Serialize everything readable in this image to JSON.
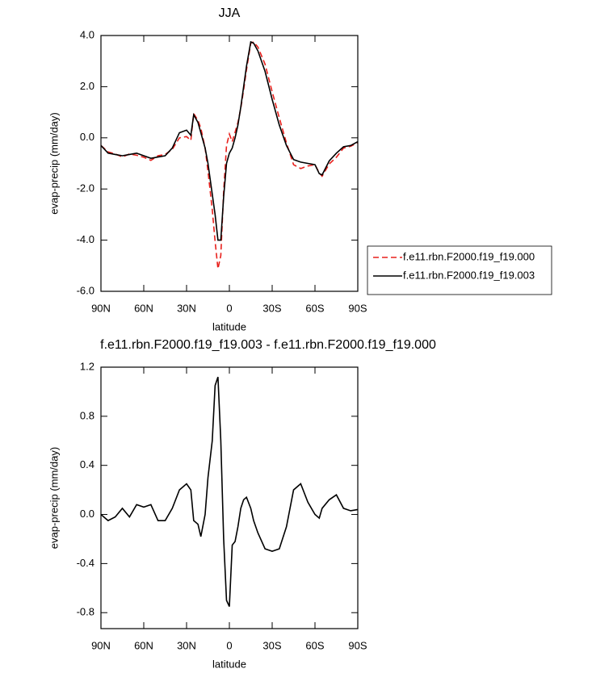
{
  "chart_data": [
    {
      "type": "line",
      "title": "JJA",
      "xlabel": "latitude",
      "ylabel": "evap-precip (mm/day)",
      "x": [
        90,
        85,
        80,
        75,
        70,
        65,
        60,
        55,
        50,
        45,
        40,
        35,
        30,
        27,
        25,
        22,
        20,
        17,
        15,
        12,
        10,
        8,
        6,
        4,
        2,
        0,
        -2,
        -4,
        -6,
        -8,
        -10,
        -12,
        -15,
        -17,
        -20,
        -25,
        -30,
        -35,
        -40,
        -45,
        -50,
        -55,
        -60,
        -63,
        -65,
        -70,
        -75,
        -80,
        -85,
        -90
      ],
      "series": [
        {
          "name": "f.e11.rbn.F2000.f19_f19.000",
          "color": "#e8201c",
          "line_style": "dashed",
          "values": [
            -0.3,
            -0.55,
            -0.63,
            -0.75,
            -0.63,
            -0.68,
            -0.76,
            -0.88,
            -0.7,
            -0.65,
            -0.45,
            0.0,
            0.05,
            -0.1,
            0.95,
            0.68,
            0.38,
            -0.4,
            -1.3,
            -2.8,
            -4.05,
            -5.12,
            -4.6,
            -2.1,
            -0.3,
            0.15,
            -0.15,
            0.22,
            0.6,
            1.15,
            1.88,
            2.66,
            3.7,
            3.75,
            3.55,
            2.88,
            1.8,
            0.78,
            -0.2,
            -1.05,
            -1.2,
            -1.1,
            -1.05,
            -1.37,
            -1.5,
            -1.02,
            -0.76,
            -0.4,
            -0.33,
            -0.19
          ]
        },
        {
          "name": "f.e11.rbn.F2000.f19_f19.003",
          "color": "#000000",
          "line_style": "solid",
          "values": [
            -0.3,
            -0.6,
            -0.65,
            -0.7,
            -0.65,
            -0.6,
            -0.7,
            -0.8,
            -0.75,
            -0.7,
            -0.4,
            0.2,
            0.3,
            0.1,
            0.9,
            0.6,
            0.2,
            -0.4,
            -1.0,
            -2.2,
            -3.0,
            -4.0,
            -4.0,
            -2.3,
            -1.0,
            -0.6,
            -0.4,
            0.0,
            0.5,
            1.2,
            2.0,
            2.8,
            3.75,
            3.7,
            3.4,
            2.6,
            1.5,
            0.5,
            -0.3,
            -0.85,
            -0.95,
            -1.0,
            -1.05,
            -1.4,
            -1.45,
            -0.9,
            -0.6,
            -0.35,
            -0.3,
            -0.15
          ]
        }
      ],
      "xlim": [
        90,
        -90
      ],
      "xticks": [
        {
          "value": 90,
          "label": "90N"
        },
        {
          "value": 60,
          "label": "60N"
        },
        {
          "value": 30,
          "label": "30N"
        },
        0,
        {
          "value": -30,
          "label": "30S"
        },
        {
          "value": -60,
          "label": "60S"
        },
        {
          "value": -90,
          "label": "90S"
        }
      ],
      "ylim": [
        -6,
        4
      ],
      "yticks": [
        {
          "value": 4,
          "label": "4.0"
        },
        {
          "value": 2,
          "label": "2.0"
        },
        {
          "value": 0,
          "label": "0.0"
        },
        {
          "value": -2,
          "label": "-2.0"
        },
        {
          "value": -4,
          "label": "-4.0"
        },
        {
          "value": -6,
          "label": "-6.0"
        }
      ],
      "legend": "right"
    },
    {
      "type": "line",
      "title": "f.e11.rbn.F2000.f19_f19.003 - f.e11.rbn.F2000.f19_f19.000",
      "xlabel": "latitude",
      "ylabel": "evap-precip (mm/day)",
      "x": [
        90,
        85,
        80,
        75,
        70,
        65,
        60,
        55,
        50,
        45,
        40,
        35,
        30,
        27,
        25,
        22,
        20,
        17,
        15,
        12,
        10,
        8,
        6,
        4,
        2,
        0,
        -2,
        -4,
        -6,
        -8,
        -10,
        -12,
        -15,
        -17,
        -20,
        -25,
        -30,
        -35,
        -40,
        -45,
        -50,
        -55,
        -60,
        -63,
        -65,
        -70,
        -75,
        -80,
        -85,
        -90
      ],
      "series": [
        {
          "color": "#000000",
          "line_style": "solid",
          "values": [
            0.0,
            -0.05,
            -0.02,
            0.05,
            -0.02,
            0.08,
            0.06,
            0.08,
            -0.05,
            -0.05,
            0.05,
            0.2,
            0.25,
            0.2,
            -0.05,
            -0.08,
            -0.18,
            0.0,
            0.3,
            0.6,
            1.05,
            1.12,
            0.6,
            -0.2,
            -0.7,
            -0.75,
            -0.25,
            -0.22,
            -0.1,
            0.05,
            0.12,
            0.14,
            0.05,
            -0.05,
            -0.15,
            -0.28,
            -0.3,
            -0.28,
            -0.1,
            0.2,
            0.25,
            0.1,
            0.0,
            -0.03,
            0.05,
            0.12,
            0.16,
            0.05,
            0.03,
            0.04
          ]
        }
      ],
      "xlim": [
        90,
        -90
      ],
      "xticks": [
        {
          "value": 90,
          "label": "90N"
        },
        {
          "value": 60,
          "label": "60N"
        },
        {
          "value": 30,
          "label": "30N"
        },
        0,
        {
          "value": -30,
          "label": "30S"
        },
        {
          "value": -60,
          "label": "60S"
        },
        {
          "value": -90,
          "label": "90S"
        }
      ],
      "ylim": [
        -0.93,
        1.2
      ],
      "yticks": [
        1.2,
        0.8,
        0.4,
        {
          "value": 0,
          "label": "0.0"
        },
        -0.4,
        -0.8
      ]
    }
  ]
}
